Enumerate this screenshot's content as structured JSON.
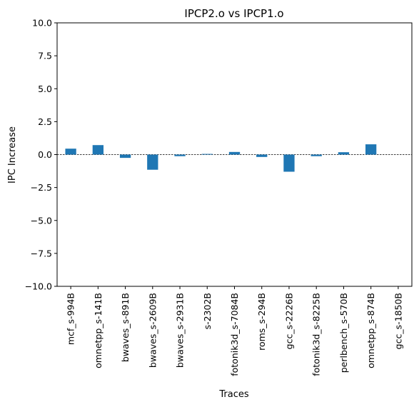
{
  "chart_data": {
    "type": "bar",
    "title": "IPCP2.o vs IPCP1.o",
    "xlabel": "Traces",
    "ylabel": "IPC Increase",
    "ylim": [
      -10,
      10
    ],
    "yticks": [
      -10.0,
      -7.5,
      -5.0,
      -2.5,
      0.0,
      2.5,
      5.0,
      7.5,
      10.0
    ],
    "ytick_labels": [
      "−10.0",
      "−7.5",
      "−5.0",
      "−2.5",
      "0.0",
      "2.5",
      "5.0",
      "7.5",
      "10.0"
    ],
    "categories": [
      "mcf_s-994B",
      "omnetpp_s-141B",
      "bwaves_s-891B",
      "bwaves_s-2609B",
      "bwaves_s-2931B",
      "s-2302B",
      "fotonik3d_s-7084B",
      "roms_s-294B",
      "gcc_s-2226B",
      "fotonik3d_s-8225B",
      "perlbench_s-570B",
      "omnetpp_s-874B",
      "gcc_s-1850B"
    ],
    "values": [
      0.45,
      0.72,
      -0.25,
      -1.15,
      -0.12,
      0.05,
      0.2,
      -0.18,
      -1.3,
      -0.12,
      0.18,
      0.78,
      0.0
    ],
    "bar_color": "#1f77b4",
    "zero_line": true,
    "grid": false,
    "legend": "none"
  }
}
